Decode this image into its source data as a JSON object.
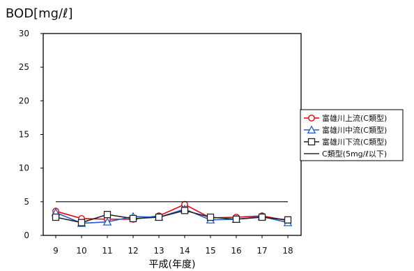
{
  "chart_data": {
    "type": "line",
    "title": "BOD[mg/ℓ]",
    "xlabel": "平成(年度)",
    "ylabel": "BOD[mg/ℓ]",
    "ylim": [
      0,
      30
    ],
    "yticks": [
      0,
      5,
      10,
      15,
      20,
      25,
      30
    ],
    "x": [
      9,
      10,
      11,
      12,
      13,
      14,
      15,
      16,
      17,
      18
    ],
    "grid": false,
    "legend_position": "right",
    "series": [
      {
        "name": "富雄川上流(C類型)",
        "color": "#e60012",
        "marker": "circle",
        "values": [
          3.6,
          2.5,
          2.4,
          2.4,
          2.9,
          4.6,
          2.6,
          2.7,
          2.9,
          2.2
        ]
      },
      {
        "name": "富雄川中流(C類型)",
        "color": "#1f5fd1",
        "marker": "triangle",
        "values": [
          3.4,
          1.8,
          2.0,
          2.8,
          2.7,
          3.9,
          2.3,
          2.4,
          2.8,
          1.9
        ]
      },
      {
        "name": "富雄川下流(C類型)",
        "color": "#222222",
        "marker": "square",
        "values": [
          2.7,
          1.9,
          3.1,
          2.5,
          2.7,
          3.7,
          2.7,
          2.4,
          2.7,
          2.3
        ]
      },
      {
        "name": "C類型(5mg/ℓ以下)",
        "color": "#000000",
        "marker": "none",
        "values": [
          5,
          5,
          5,
          5,
          5,
          5,
          5,
          5,
          5,
          5
        ]
      }
    ]
  }
}
